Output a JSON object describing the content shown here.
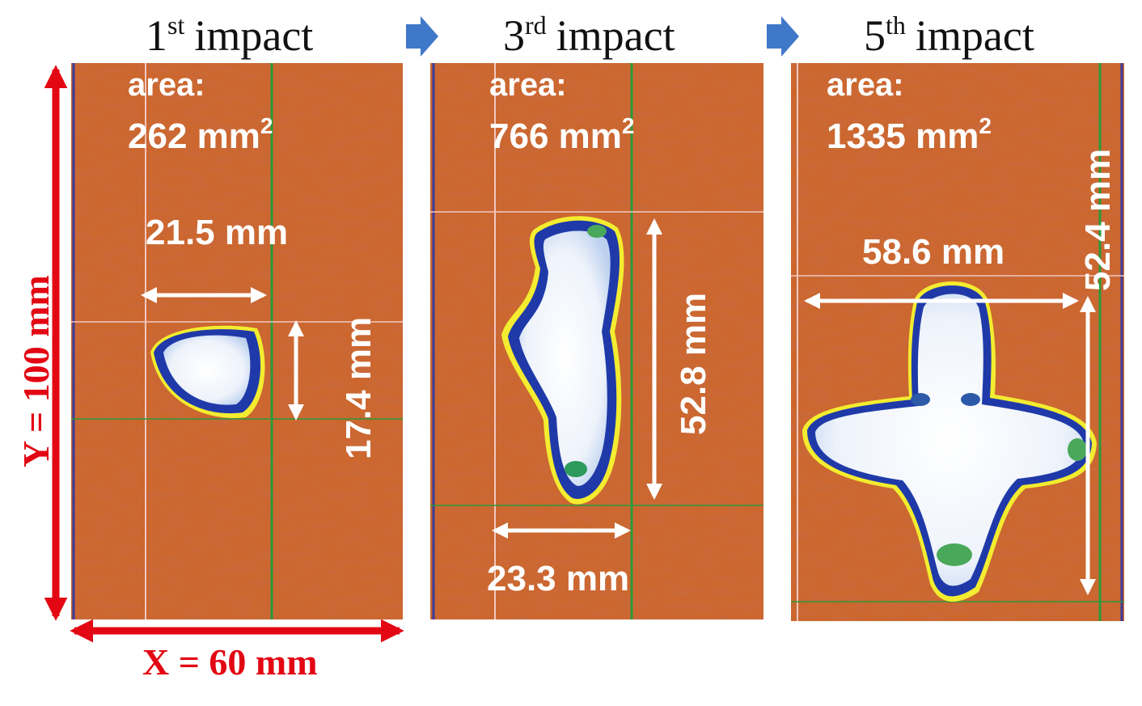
{
  "figure": {
    "arrow_color": "#3f78c8",
    "axis_color": "#e30613",
    "panels": [
      {
        "title_number": "1",
        "title_suffix": "st",
        "title_word": "impact",
        "area_label": "area:",
        "area_value": "262 mm",
        "area_exp": "2",
        "width_label": "21.5 mm",
        "height_label": "17.4 mm"
      },
      {
        "title_number": "3",
        "title_suffix": "rd",
        "title_word": "impact",
        "area_label": "area:",
        "area_value": "766 mm",
        "area_exp": "2",
        "height_label": "52.8 mm",
        "width_label": "23.3 mm"
      },
      {
        "title_number": "5",
        "title_suffix": "th",
        "title_word": "impact",
        "area_label": "area:",
        "area_value": "1335 mm",
        "area_exp": "2",
        "width_label": "58.6 mm",
        "height_label": "52.4 mm"
      }
    ],
    "y_axis_label": "Y = 100 mm",
    "x_axis_label": "X = 60 mm"
  }
}
